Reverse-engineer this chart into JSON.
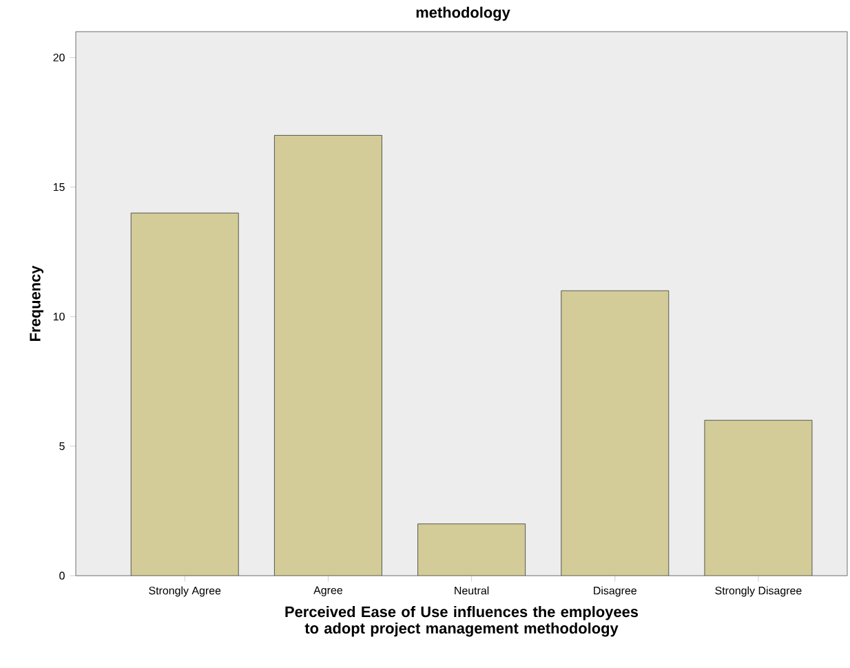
{
  "chart_data": {
    "type": "bar",
    "title": "methodology",
    "xlabel": "Perceived Ease of Use influences the employees to adopt project management methodology",
    "ylabel": "Frequency",
    "categories": [
      "Strongly Agree",
      "Agree",
      "Neutral",
      "Disagree",
      "Strongly Disagree"
    ],
    "values": [
      14,
      17,
      2,
      11,
      6
    ],
    "color": "#d3cc98",
    "ylim": [
      0,
      21
    ],
    "yticks": [
      0,
      5,
      10,
      15,
      20
    ],
    "grid": false
  }
}
